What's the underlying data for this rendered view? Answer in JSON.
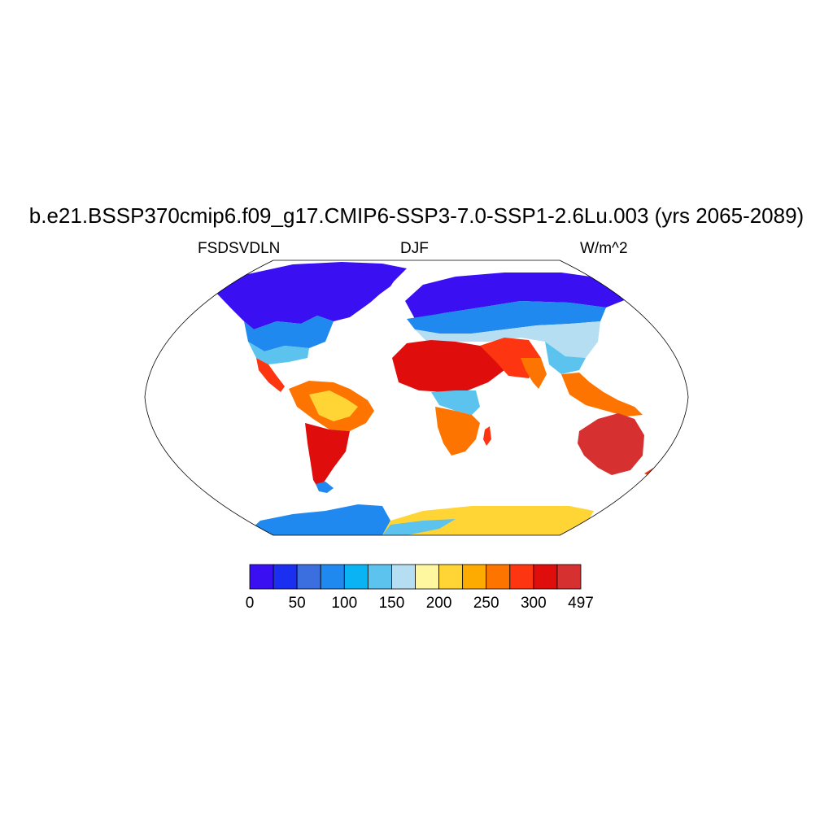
{
  "title": "b.e21.BSSP370cmip6.f09_g17.CMIP6-SSP3-7.0-SSP1-2.6Lu.003 (yrs 2065-2089)",
  "left_string": "FSDSVDLN",
  "center_string": "DJF",
  "right_string": "W/m^2",
  "colorbar": {
    "colors": [
      "#3a10f2",
      "#1a2fef",
      "#3b6fe0",
      "#2089f0",
      "#0ab4f4",
      "#5cc3ee",
      "#b5def2",
      "#fff7a0",
      "#ffd535",
      "#fdab00",
      "#fd7500",
      "#fd3510",
      "#e00d0d",
      "#d63030"
    ],
    "labels": [
      "0",
      "50",
      "100",
      "150",
      "200",
      "250",
      "300",
      "497"
    ]
  },
  "map": {
    "projection": "Robinson",
    "features": [
      "continent-outlines",
      "filled-contours"
    ]
  }
}
